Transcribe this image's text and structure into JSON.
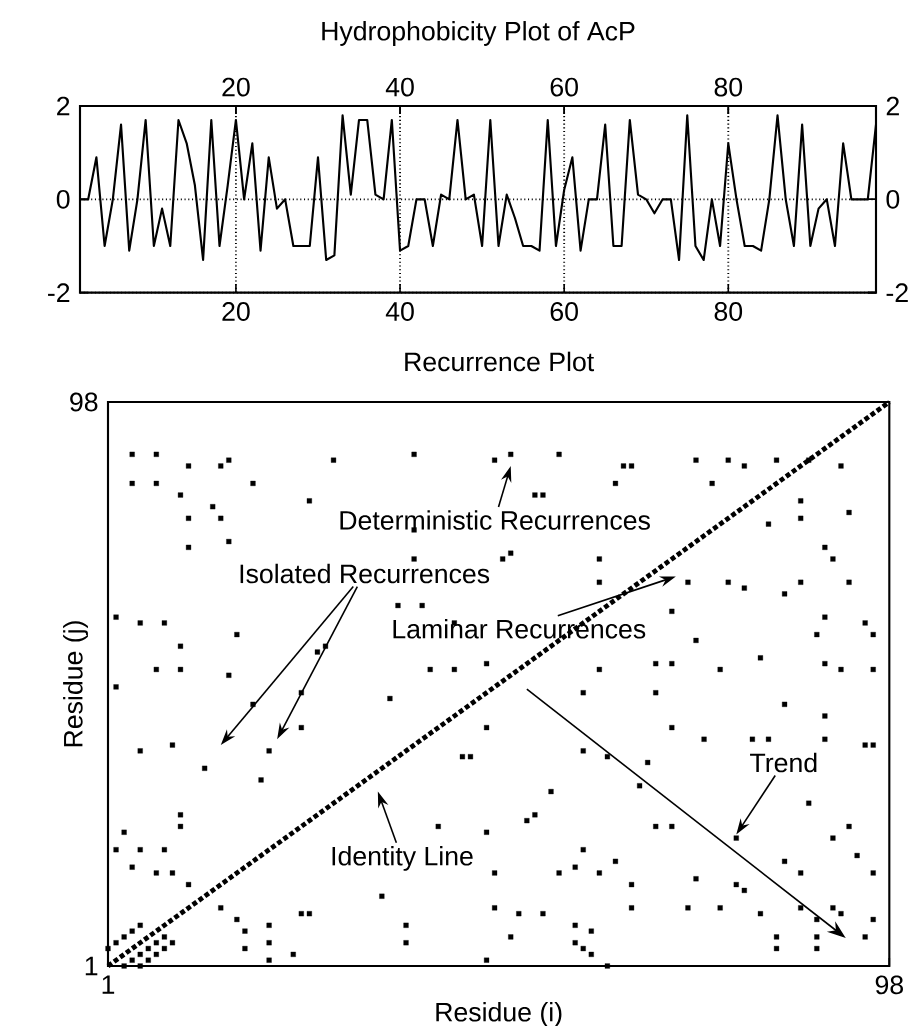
{
  "chart_data": [
    {
      "type": "line",
      "title": "Hydrophobicity Plot of AcP",
      "xlim": [
        1,
        98
      ],
      "xticks": [
        20,
        40,
        60,
        80
      ],
      "ylim": [
        -2,
        2
      ],
      "yticks": [
        -2,
        0,
        2
      ],
      "x2lim": [
        1,
        98
      ],
      "x2ticks": [
        20,
        40,
        60,
        80
      ],
      "y2lim": [
        -2,
        2
      ],
      "y2ticks": [
        -2,
        0,
        2
      ],
      "grid": true,
      "color": "#000000",
      "x": [
        1,
        2,
        3,
        4,
        5,
        6,
        7,
        8,
        9,
        10,
        11,
        12,
        13,
        14,
        15,
        16,
        17,
        18,
        19,
        20,
        21,
        22,
        23,
        24,
        25,
        26,
        27,
        28,
        29,
        30,
        31,
        32,
        33,
        34,
        35,
        36,
        37,
        38,
        39,
        40,
        41,
        42,
        43,
        44,
        45,
        46,
        47,
        48,
        49,
        50,
        51,
        52,
        53,
        54,
        55,
        56,
        57,
        58,
        59,
        60,
        61,
        62,
        63,
        64,
        65,
        66,
        67,
        68,
        69,
        70,
        71,
        72,
        73,
        74,
        75,
        76,
        77,
        78,
        79,
        80,
        81,
        82,
        83,
        84,
        85,
        86,
        87,
        88,
        89,
        90,
        91,
        92,
        93,
        94,
        95,
        96,
        97,
        98
      ],
      "values": [
        0,
        0,
        0.9,
        -1,
        0,
        1.6,
        -1.1,
        0,
        1.7,
        -1,
        -0.2,
        -1,
        1.7,
        1.2,
        0.3,
        -1.3,
        1.7,
        -1,
        0.3,
        1.7,
        0,
        1.2,
        -1.1,
        0.9,
        -0.2,
        0,
        -1,
        -1,
        -1,
        0.9,
        -1.3,
        -1.2,
        1.8,
        0.1,
        1.7,
        1.7,
        0.1,
        0,
        1.7,
        -1.1,
        -1,
        0,
        0,
        -1,
        0.1,
        0,
        1.7,
        0,
        0.1,
        -1,
        1.7,
        -1,
        0.1,
        -0.4,
        -1,
        -1,
        -1.1,
        1.7,
        -1,
        0.2,
        0.9,
        -1.1,
        0,
        0,
        1.6,
        -1,
        -1,
        1.7,
        0.1,
        0,
        -0.3,
        0,
        0,
        -1.3,
        1.8,
        -1,
        -1.3,
        0,
        -1,
        1.2,
        0,
        -1,
        -1,
        -1.1,
        0,
        1.8,
        0,
        -1,
        1.6,
        -1,
        -0.2,
        0,
        -1,
        1.2,
        0,
        0,
        0,
        1.6
      ]
    },
    {
      "type": "scatter",
      "title": "Recurrence Plot",
      "xlabel": "Residue (i)",
      "ylabel": "Residue (j)",
      "xlim": [
        1,
        98
      ],
      "xticks": [
        1,
        98
      ],
      "ylim": [
        1,
        98
      ],
      "yticks": [
        1,
        98
      ],
      "series": [
        {
          "type": "scatter",
          "color": "#000000",
          "marker": "square",
          "x": [
            4,
            7,
            11,
            15,
            16,
            29,
            39,
            49,
            51,
            57,
            65,
            66,
            74,
            78,
            80,
            84,
            88,
            92,
            4,
            7,
            19,
            10,
            14,
            26,
            11,
            15,
            11,
            16,
            2,
            5,
            8,
            17,
            10,
            7,
            10,
            2,
            16,
            25,
            19,
            25,
            36,
            41,
            37,
            40,
            27,
            28,
            39,
            39,
            54,
            55,
            64,
            76,
            87,
            93,
            87,
            83,
            91,
            90,
            93,
            87,
            85,
            80,
            78,
            73,
            62,
            50,
            51,
            90,
            89,
            95,
            96,
            82,
            74,
            71,
            69,
            62,
            60,
            77,
            90,
            92,
            96,
            85,
            90,
            69,
            71,
            48,
            44,
            48,
            95,
            81,
            44,
            62,
            71,
            5,
            9,
            13,
            21,
            20,
            10,
            10,
            3,
            2,
            5,
            8,
            4,
            7,
            9,
            11,
            15,
            17,
            18,
            21,
            18,
            21,
            21,
            24,
            25,
            26,
            35,
            38,
            38,
            42,
            3,
            4,
            5,
            6,
            7,
            8,
            5,
            6,
            7,
            8,
            9,
            1,
            2,
            3,
            4,
            5,
            45,
            46,
            60,
            63,
            68,
            67,
            56,
            53,
            54,
            48,
            69,
            71,
            79,
            88,
            93,
            94,
            91,
            85,
            87,
            60,
            64,
            59,
            57,
            62,
            49,
            66,
            74,
            79,
            80,
            73,
            77,
            82,
            87,
            91,
            96,
            66,
            55,
            49,
            52,
            51,
            59,
            61,
            59,
            60,
            61,
            63,
            48,
            84,
            84,
            89,
            89,
            89,
            92,
            96,
            95,
            75,
            83,
            90,
            96
          ],
          "values": [
            89,
            89,
            87,
            87,
            88,
            88,
            89,
            88,
            89,
            89,
            87,
            87,
            88,
            88,
            87,
            88,
            88,
            87,
            84,
            84,
            84,
            82,
            80,
            81,
            78,
            78,
            73,
            74,
            61,
            60,
            60,
            58,
            56,
            52,
            52,
            49,
            51,
            48,
            46,
            42,
            47,
            52,
            63,
            63,
            55,
            56,
            76,
            71,
            82,
            82,
            84,
            84,
            81,
            79,
            78,
            77,
            71,
            73,
            67,
            67,
            65,
            66,
            67,
            67,
            71,
            71,
            72,
            61,
            58,
            60,
            58,
            54,
            57,
            53,
            53,
            52,
            48,
            52,
            53,
            52,
            52,
            46,
            44,
            48,
            42,
            53,
            52,
            42,
            39,
            40,
            60,
            67,
            62,
            38,
            39,
            35,
            38,
            33,
            27,
            25,
            24,
            21,
            21,
            21,
            18,
            17,
            17,
            15,
            11,
            9,
            7,
            8,
            4,
            5,
            2,
            3,
            10,
            10,
            13,
            5,
            8,
            25,
            1,
            2,
            3,
            4,
            5,
            6,
            1,
            2,
            3,
            4,
            5,
            4,
            5,
            6,
            7,
            8,
            37,
            37,
            38,
            37,
            36,
            32,
            31,
            26,
            27,
            24,
            25,
            25,
            23,
            29,
            25,
            20,
            23,
            19,
            17,
            21,
            19,
            18,
            17,
            17,
            17,
            15,
            16,
            15,
            14,
            11,
            11,
            10,
            11,
            11,
            17,
            11,
            10,
            11,
            10,
            6,
            8,
            7,
            5,
            4,
            3,
            1,
            2,
            6,
            4,
            9,
            6,
            4,
            10,
            9,
            6,
            40,
            40,
            40,
            39
          ]
        },
        {
          "type": "line",
          "color": "#000000",
          "line_style": "dotted",
          "x": [
            1,
            98
          ],
          "values": [
            1,
            98
          ]
        }
      ],
      "annotations": [
        "Deterministic Recurrences",
        "Isolated Recurrences",
        "Laminar Recurrences",
        "Trend",
        "Identity Line"
      ]
    }
  ]
}
